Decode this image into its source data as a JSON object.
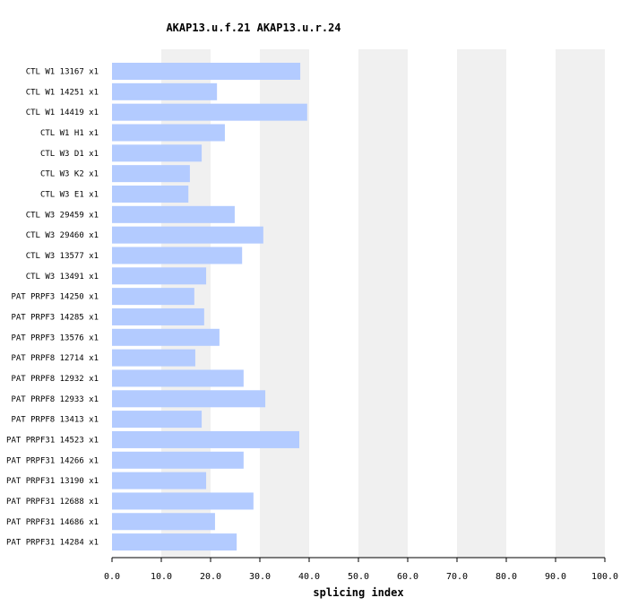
{
  "chart_data": {
    "type": "bar",
    "orientation": "horizontal",
    "title": "AKAP13.u.f.21  AKAP13.u.r.24",
    "xlabel": "splicing index",
    "ylabel": "",
    "xlim": [
      0,
      100
    ],
    "xticks": [
      "0.0",
      "10.0",
      "20.0",
      "30.0",
      "40.0",
      "50.0",
      "60.0",
      "70.0",
      "80.0",
      "90.0",
      "100.0"
    ],
    "grid": "alternating vertical bands",
    "bar_color": "#b3cbff",
    "band_color": "#f0f0f0",
    "categories": [
      "CTL W1 13167 x1",
      "CTL W1 14251 x1",
      "CTL W1 14419 x1",
      "CTL W1 H1 x1",
      "CTL W3 D1 x1",
      "CTL W3 K2 x1",
      "CTL W3 E1 x1",
      "CTL W3 29459 x1",
      "CTL W3 29460 x1",
      "CTL W3 13577 x1",
      "CTL W3 13491 x1",
      "PAT PRPF3 14250 x1",
      "PAT PRPF3 14285 x1",
      "PAT PRPF3 13576 x1",
      "PAT PRPF8 12714 x1",
      "PAT PRPF8 12932 x1",
      "PAT PRPF8 12933 x1",
      "PAT PRPF8 13413 x1",
      "PAT PRPF31 14523 x1",
      "PAT PRPF31 14266 x1",
      "PAT PRPF31 13190 x1",
      "PAT PRPF31 12688 x1",
      "PAT PRPF31 14686 x1",
      "PAT PRPF31 14284 x1"
    ],
    "values": [
      38.2,
      21.3,
      39.6,
      22.9,
      18.2,
      15.8,
      15.5,
      24.9,
      30.7,
      26.4,
      19.1,
      16.7,
      18.7,
      21.8,
      16.9,
      26.7,
      31.1,
      18.2,
      38.0,
      26.7,
      19.1,
      28.7,
      20.9,
      25.3
    ]
  }
}
